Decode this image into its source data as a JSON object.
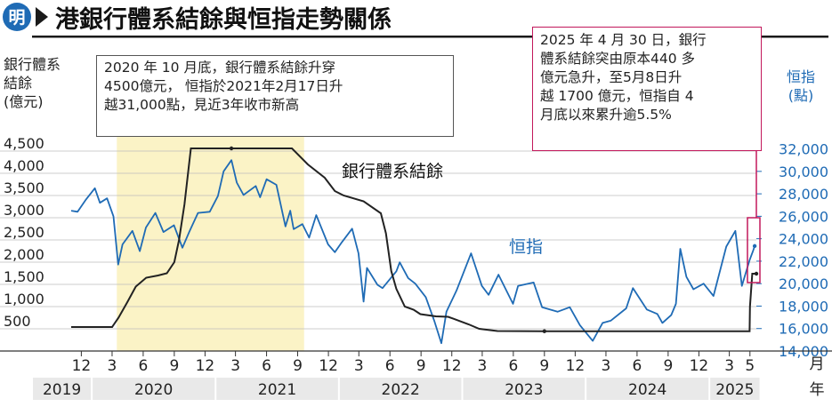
{
  "header": {
    "logo_text": "明",
    "title": "港銀行體系結餘與恒指走勢關係"
  },
  "axes": {
    "left_label_lines": [
      "銀行體系",
      "結餘",
      "(億元)"
    ],
    "right_label_lines": [
      "恒指",
      "(點)"
    ],
    "month_unit": "月",
    "year_unit": "年"
  },
  "annotations": {
    "left_lines": [
      "2020 年 10 月底，銀行體系結餘升穿",
      "4500億元， 恒指於2021年2月17日升",
      "越31,000點，見近3年收市新高"
    ],
    "right_lines": [
      "2025 年 4 月 30 日，銀行",
      "體系結餘突由原本440 多",
      "億元急升，至5月8日升",
      "越 1700 億元，恒指自 4",
      "月底以來累升逾5.5%"
    ]
  },
  "colors": {
    "balance_line": "#222222",
    "hsi_line": "#1f6bb5",
    "highlight": "#fbf3c6",
    "note_border_right": "#c2185b",
    "title_bar": "#1a1a1a",
    "year_band": "#e9e9e9",
    "logo": "#1f6bb5"
  },
  "chart_data": {
    "type": "line",
    "title": "港銀行體系結餘與恒指走勢關係",
    "x_label": "月/年",
    "y_left": {
      "label": "銀行體系結餘(億元)",
      "range": [
        0,
        4700
      ],
      "ticks": [
        500,
        1000,
        1500,
        2000,
        2500,
        3000,
        3500,
        4000,
        4500
      ]
    },
    "y_right": {
      "label": "恒指(點)",
      "range": [
        14000,
        32600
      ],
      "ticks": [
        14000,
        16000,
        18000,
        20000,
        22000,
        24000,
        26000,
        28000,
        30000,
        32000
      ]
    },
    "month_ticks": [
      "12",
      "3",
      "6",
      "9",
      "12",
      "3",
      "6",
      "9",
      "12",
      "3",
      "6",
      "9",
      "12",
      "3",
      "6",
      "9",
      "12",
      "3",
      "6",
      "9",
      "12",
      "3",
      "5"
    ],
    "month_tick_dates": [
      "2019-12",
      "2020-03",
      "2020-06",
      "2020-09",
      "2020-12",
      "2021-03",
      "2021-06",
      "2021-09",
      "2021-12",
      "2022-03",
      "2022-06",
      "2022-09",
      "2022-12",
      "2023-03",
      "2023-06",
      "2023-09",
      "2023-12",
      "2024-03",
      "2024-06",
      "2024-09",
      "2024-12",
      "2025-03",
      "2025-05"
    ],
    "years": [
      {
        "label": "2019",
        "from": "2019-11",
        "to": "2019-12"
      },
      {
        "label": "2020",
        "from": "2020-01",
        "to": "2020-12"
      },
      {
        "label": "2021",
        "from": "2021-01",
        "to": "2021-12"
      },
      {
        "label": "2022",
        "from": "2022-01",
        "to": "2022-12"
      },
      {
        "label": "2023",
        "from": "2023-01",
        "to": "2023-12"
      },
      {
        "label": "2024",
        "from": "2024-01",
        "to": "2024-12"
      },
      {
        "label": "2025",
        "from": "2025-01",
        "to": "2025-05"
      }
    ],
    "highlight_range": [
      "2020-03-15",
      "2021-09-20"
    ],
    "series": [
      {
        "name": "銀行體系結餘",
        "axis": "left",
        "step": true,
        "points": [
          [
            "2019-11-01",
            540
          ],
          [
            "2020-03-01",
            540
          ],
          [
            "2020-03-20",
            750
          ],
          [
            "2020-04-15",
            1100
          ],
          [
            "2020-05-10",
            1450
          ],
          [
            "2020-06-10",
            1650
          ],
          [
            "2020-07-15",
            1700
          ],
          [
            "2020-08-10",
            1750
          ],
          [
            "2020-09-01",
            2000
          ],
          [
            "2020-09-15",
            2500
          ],
          [
            "2020-10-01",
            3300
          ],
          [
            "2020-10-20",
            4560
          ],
          [
            "2021-08-15",
            4560
          ],
          [
            "2021-10-01",
            4200
          ],
          [
            "2021-11-20",
            3900
          ],
          [
            "2021-12-20",
            3600
          ],
          [
            "2022-01-15",
            3500
          ],
          [
            "2022-03-15",
            3370
          ],
          [
            "2022-05-05",
            3100
          ],
          [
            "2022-05-20",
            2650
          ],
          [
            "2022-06-05",
            1800
          ],
          [
            "2022-06-20",
            1400
          ],
          [
            "2022-07-15",
            1000
          ],
          [
            "2022-08-10",
            930
          ],
          [
            "2022-08-30",
            830
          ],
          [
            "2022-10-15",
            780
          ],
          [
            "2022-11-20",
            770
          ],
          [
            "2023-01-20",
            600
          ],
          [
            "2023-02-20",
            500
          ],
          [
            "2023-04-15",
            450
          ],
          [
            "2023-08-30",
            445
          ],
          [
            "2025-04-30",
            445
          ],
          [
            "2025-05-01",
            1000
          ],
          [
            "2025-05-08",
            1740
          ],
          [
            "2025-05-20",
            1740
          ]
        ]
      },
      {
        "name": "恒指",
        "axis": "right",
        "step": false,
        "points": [
          [
            "2019-11-01",
            26500
          ],
          [
            "2019-11-20",
            26400
          ],
          [
            "2019-12-15",
            27500
          ],
          [
            "2020-01-10",
            28500
          ],
          [
            "2020-01-25",
            27200
          ],
          [
            "2020-02-15",
            27600
          ],
          [
            "2020-03-05",
            26000
          ],
          [
            "2020-03-19",
            21700
          ],
          [
            "2020-04-01",
            23500
          ],
          [
            "2020-04-30",
            24700
          ],
          [
            "2020-05-22",
            22900
          ],
          [
            "2020-06-09",
            25000
          ],
          [
            "2020-07-07",
            26300
          ],
          [
            "2020-07-31",
            24600
          ],
          [
            "2020-08-31",
            25200
          ],
          [
            "2020-09-25",
            23200
          ],
          [
            "2020-10-15",
            24600
          ],
          [
            "2020-11-10",
            26300
          ],
          [
            "2020-12-15",
            26400
          ],
          [
            "2021-01-08",
            27800
          ],
          [
            "2021-01-25",
            30000
          ],
          [
            "2021-02-17",
            31000
          ],
          [
            "2021-03-05",
            29000
          ],
          [
            "2021-03-25",
            27900
          ],
          [
            "2021-04-30",
            28700
          ],
          [
            "2021-05-13",
            27700
          ],
          [
            "2021-06-01",
            29300
          ],
          [
            "2021-06-30",
            28800
          ],
          [
            "2021-07-27",
            25100
          ],
          [
            "2021-08-10",
            26500
          ],
          [
            "2021-08-20",
            24850
          ],
          [
            "2021-09-15",
            25300
          ],
          [
            "2021-10-05",
            24100
          ],
          [
            "2021-10-26",
            26100
          ],
          [
            "2021-11-30",
            23500
          ],
          [
            "2021-12-20",
            22800
          ],
          [
            "2022-01-10",
            23700
          ],
          [
            "2022-02-09",
            24900
          ],
          [
            "2022-02-28",
            22700
          ],
          [
            "2022-03-15",
            18400
          ],
          [
            "2022-03-25",
            21400
          ],
          [
            "2022-04-25",
            19900
          ],
          [
            "2022-05-10",
            19600
          ],
          [
            "2022-06-20",
            21100
          ],
          [
            "2022-06-30",
            21900
          ],
          [
            "2022-07-25",
            20500
          ],
          [
            "2022-08-15",
            20000
          ],
          [
            "2022-09-15",
            18800
          ],
          [
            "2022-10-10",
            16700
          ],
          [
            "2022-10-31",
            14700
          ],
          [
            "2022-11-15",
            17500
          ],
          [
            "2022-12-15",
            19400
          ],
          [
            "2023-01-27",
            22700
          ],
          [
            "2023-02-28",
            19800
          ],
          [
            "2023-03-20",
            19000
          ],
          [
            "2023-04-18",
            20800
          ],
          [
            "2023-05-31",
            18200
          ],
          [
            "2023-06-15",
            19800
          ],
          [
            "2023-07-31",
            20100
          ],
          [
            "2023-08-25",
            17900
          ],
          [
            "2023-10-10",
            17500
          ],
          [
            "2023-11-15",
            17900
          ],
          [
            "2023-12-15",
            16300
          ],
          [
            "2024-01-22",
            14900
          ],
          [
            "2024-02-20",
            16500
          ],
          [
            "2024-03-15",
            16700
          ],
          [
            "2024-04-30",
            17800
          ],
          [
            "2024-05-20",
            19600
          ],
          [
            "2024-06-30",
            17700
          ],
          [
            "2024-07-31",
            17300
          ],
          [
            "2024-08-15",
            16500
          ],
          [
            "2024-09-10",
            17200
          ],
          [
            "2024-09-24",
            18200
          ],
          [
            "2024-10-07",
            23100
          ],
          [
            "2024-10-25",
            20600
          ],
          [
            "2024-11-15",
            19500
          ],
          [
            "2024-12-15",
            20000
          ],
          [
            "2025-01-13",
            18900
          ],
          [
            "2025-02-20",
            23300
          ],
          [
            "2025-03-19",
            24700
          ],
          [
            "2025-04-07",
            19800
          ],
          [
            "2025-04-30",
            22100
          ],
          [
            "2025-05-10",
            22900
          ],
          [
            "2025-05-15",
            23350
          ]
        ]
      }
    ]
  }
}
